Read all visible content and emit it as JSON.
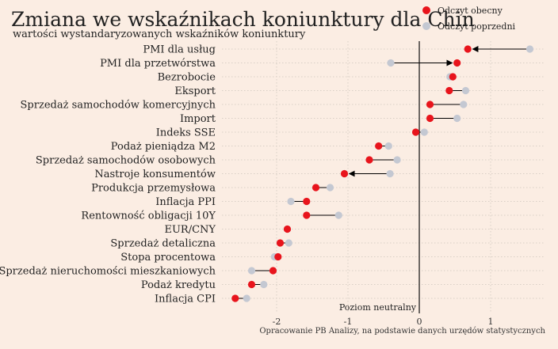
{
  "colors": {
    "background": "#FBEDE3",
    "current": "#E8141C",
    "previous": "#C4C8D2",
    "connector": "#000000",
    "grid": "#D9CFC6"
  },
  "chart_data": {
    "type": "dot-range",
    "title": "Zmiana we wskaźnikach koniunktury dla Chin",
    "subtitle": "wartości wystandaryzowanych wskaźników koniunktury",
    "xlim": [
      -2.55,
      1.75
    ],
    "xticks": [
      -2,
      -1,
      0,
      1
    ],
    "xtick_labels": [
      "-2",
      "-1",
      "0",
      "1"
    ],
    "grid": true,
    "legend_position": "top-right",
    "annotation": "Poziom neutralny",
    "source": "Opracowanie PB Analizy, na podstawie danych urzędów statystycznych",
    "series": [
      {
        "name": "Odczyt obecny",
        "color": "#E8141C"
      },
      {
        "name": "Odczyt poprzedni",
        "color": "#C4C8D2"
      }
    ],
    "categories": [
      "PMI dla usług",
      "PMI dla przetwórstwa",
      "Bezrobocie",
      "Eksport",
      "Sprzedaż samochodów komercyjnych",
      "Import",
      "Indeks SSE",
      "Podaż pieniądza M2",
      "Sprzedaż samochodów osobowych",
      "Nastroje konsumentów",
      "Produkcja przemysłowa",
      "Inflacja PPI",
      "Rentowność obligacji 10Y",
      "EUR/CNY",
      "Sprzedaż detaliczna",
      "Stopa procentowa",
      "Sprzedaż nieruchomości mieszkaniowych",
      "Podaż kredytu",
      "Inflacja CPI"
    ],
    "current": [
      0.68,
      0.53,
      0.47,
      0.42,
      0.15,
      0.15,
      -0.05,
      -0.57,
      -0.7,
      -1.05,
      -1.45,
      -1.58,
      -1.58,
      -1.85,
      -1.95,
      -1.98,
      -2.05,
      -2.35,
      -2.58
    ],
    "previous": [
      1.55,
      -0.4,
      0.43,
      0.65,
      0.62,
      0.53,
      0.07,
      -0.43,
      -0.31,
      -0.41,
      -1.25,
      -1.8,
      -1.13,
      -1.85,
      -1.83,
      -2.03,
      -2.35,
      -2.18,
      -2.42
    ],
    "arrows": [
      true,
      true,
      false,
      false,
      false,
      false,
      false,
      false,
      false,
      true,
      false,
      false,
      false,
      false,
      false,
      false,
      false,
      false,
      false
    ]
  }
}
